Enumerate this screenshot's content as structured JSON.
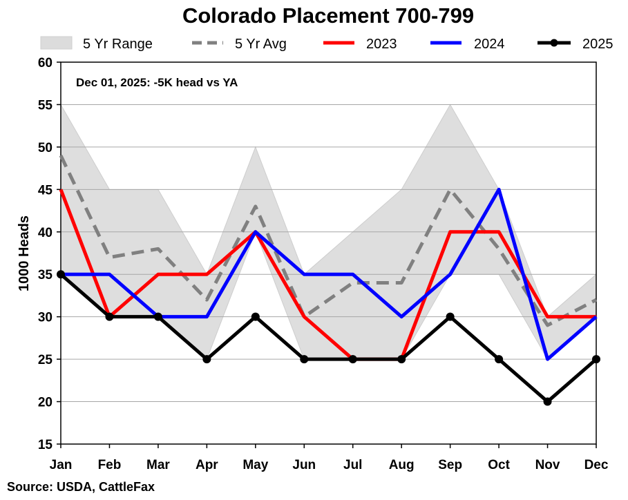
{
  "chart_data": {
    "type": "line",
    "title": "Colorado Placement 700-799",
    "ylabel": "1000 Heads",
    "xlabel": "",
    "ylim": [
      15,
      60
    ],
    "yticks": [
      15,
      20,
      25,
      30,
      35,
      40,
      45,
      50,
      55,
      60
    ],
    "categories": [
      "Jan",
      "Feb",
      "Mar",
      "Apr",
      "May",
      "Jun",
      "Jul",
      "Aug",
      "Sep",
      "Oct",
      "Nov",
      "Dec"
    ],
    "grid": true,
    "legend_position": "top",
    "annotation": "Dec 01, 2025: -5K head vs YA",
    "source": "Source: USDA, CattleFax",
    "range": {
      "name": "5 Yr Range",
      "color": "#d9d9d9",
      "min": [
        35,
        30,
        30,
        25,
        40,
        25,
        25,
        25,
        35,
        35,
        25,
        30
      ],
      "max": [
        55,
        45,
        45,
        35,
        50,
        35,
        40,
        45,
        55,
        45,
        30,
        35
      ]
    },
    "series": [
      {
        "name": "5 Yr Avg",
        "color": "#808080",
        "style": "dashed",
        "markers": false,
        "values": [
          49,
          37,
          38,
          32,
          43,
          30,
          34,
          34,
          45,
          38,
          29,
          32
        ]
      },
      {
        "name": "2023",
        "color": "#ff0000",
        "style": "solid",
        "markers": false,
        "values": [
          45,
          30,
          35,
          35,
          40,
          30,
          25,
          25,
          40,
          40,
          30,
          30
        ]
      },
      {
        "name": "2024",
        "color": "#0000ff",
        "style": "solid",
        "markers": false,
        "values": [
          35,
          35,
          30,
          30,
          40,
          35,
          35,
          30,
          35,
          45,
          25,
          30
        ]
      },
      {
        "name": "2025",
        "color": "#000000",
        "style": "solid",
        "markers": true,
        "values": [
          35,
          30,
          30,
          25,
          30,
          25,
          25,
          25,
          30,
          25,
          20,
          25
        ]
      }
    ]
  }
}
